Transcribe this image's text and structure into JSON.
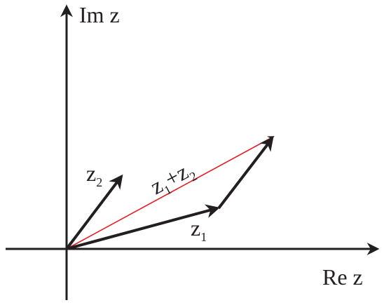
{
  "axes": {
    "x_label": "Re z",
    "y_label": "Im z"
  },
  "vectors": [
    {
      "label": "z",
      "subscript": "1"
    },
    {
      "label": "z",
      "subscript": "2"
    }
  ],
  "sum": {
    "terms": [
      {
        "label": "z",
        "subscript": "1"
      },
      {
        "label": "z",
        "subscript": "2"
      }
    ],
    "operator": "+"
  }
}
